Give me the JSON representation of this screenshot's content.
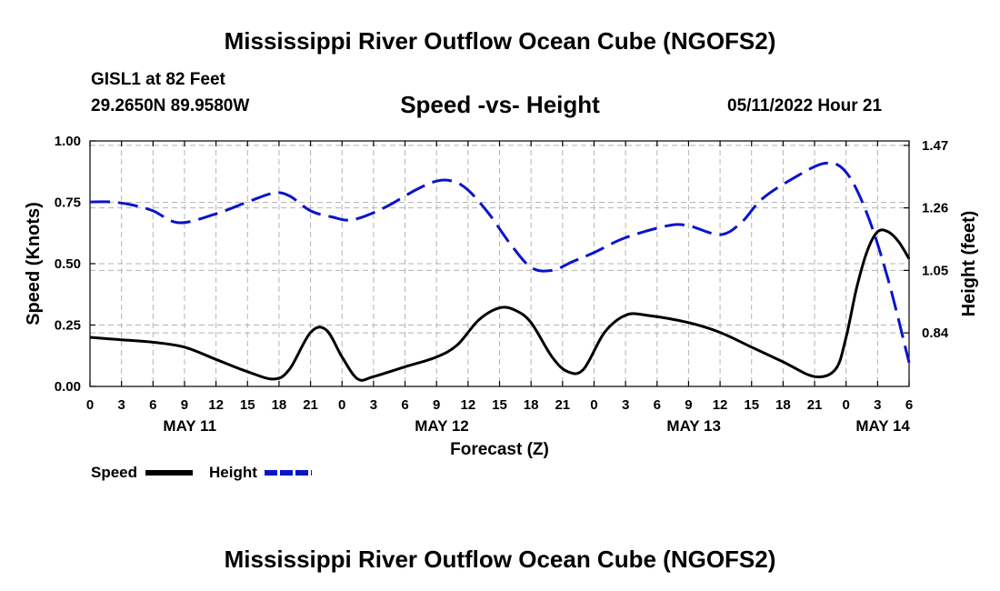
{
  "header": {
    "title": "Mississippi River Outflow Ocean Cube (NGOFS2)",
    "station": "GISL1 at 82 Feet",
    "coords": "29.2650N  89.9580W",
    "subtitle": "Speed -vs- Height",
    "datetime": "05/11/2022 Hour 21"
  },
  "footer": {
    "title_repeat": "Mississippi River Outflow Ocean Cube (NGOFS2)"
  },
  "chart_data": {
    "type": "line",
    "title": "Speed -vs- Height",
    "xlabel": "Forecast (Z)",
    "ylabel": "Speed (Knots)",
    "ylabel_right": "Height (feet)",
    "grid": true,
    "xlim": [
      0,
      78
    ],
    "ylim": [
      0,
      1
    ],
    "ylim_right": [
      0.66,
      1.485
    ],
    "x_ticks": [
      0,
      3,
      6,
      9,
      12,
      15,
      18,
      21,
      24,
      27,
      30,
      33,
      36,
      39,
      42,
      45,
      48,
      51,
      54,
      57,
      60,
      63,
      66,
      69,
      72,
      75,
      78
    ],
    "x_tick_labels": [
      "0",
      "3",
      "6",
      "9",
      "12",
      "15",
      "18",
      "21",
      "0",
      "3",
      "6",
      "9",
      "12",
      "15",
      "18",
      "21",
      "0",
      "3",
      "6",
      "9",
      "12",
      "15",
      "18",
      "21",
      "0",
      "3",
      "6"
    ],
    "date_labels": [
      {
        "x": 9.5,
        "label": "MAY 11"
      },
      {
        "x": 33.5,
        "label": "MAY 12"
      },
      {
        "x": 57.5,
        "label": "MAY 13"
      },
      {
        "x": 75.5,
        "label": "MAY 14"
      }
    ],
    "y_ticks": [
      0,
      0.25,
      0.5,
      0.75,
      1.0
    ],
    "y_tick_labels": [
      "0.00",
      "0.25",
      "0.50",
      "0.75",
      "1.00"
    ],
    "y_ticks_right": [
      0.84,
      1.05,
      1.26,
      1.47
    ],
    "y_tick_labels_right": [
      "0.84",
      "1.05",
      "1.26",
      "1.47"
    ],
    "legend": [
      {
        "name": "Speed",
        "color": "#000000",
        "dash": "solid"
      },
      {
        "name": "Height",
        "color": "#0a14c8",
        "dash": "dashed"
      }
    ],
    "legend_position": "bottom-left",
    "series": [
      {
        "name": "Speed",
        "axis": "left",
        "color": "#000000",
        "x": [
          0,
          3,
          6,
          9,
          12,
          15,
          17.5,
          19,
          21,
          22.5,
          24,
          25.5,
          27,
          30,
          33,
          35,
          37,
          39,
          40.5,
          42,
          44,
          45.5,
          47,
          49,
          51,
          53,
          57,
          60,
          63,
          66,
          69,
          71,
          72,
          73,
          74,
          75,
          76,
          77,
          78
        ],
        "values": [
          0.2,
          0.19,
          0.18,
          0.16,
          0.11,
          0.06,
          0.03,
          0.07,
          0.22,
          0.23,
          0.12,
          0.03,
          0.04,
          0.08,
          0.12,
          0.17,
          0.27,
          0.32,
          0.31,
          0.26,
          0.12,
          0.06,
          0.07,
          0.22,
          0.29,
          0.29,
          0.26,
          0.22,
          0.16,
          0.1,
          0.04,
          0.07,
          0.2,
          0.4,
          0.55,
          0.63,
          0.63,
          0.59,
          0.52
        ]
      },
      {
        "name": "Height",
        "axis": "right",
        "color": "#0a14c8",
        "x": [
          0,
          2,
          4,
          6,
          8.5,
          12,
          15,
          17.5,
          19,
          21,
          23,
          25,
          28,
          31,
          33,
          34.5,
          36,
          38,
          40,
          42,
          44,
          46,
          48,
          51,
          55,
          57,
          60,
          62,
          64,
          67,
          70,
          72,
          74,
          76,
          78
        ],
        "values": [
          1.28,
          1.28,
          1.27,
          1.25,
          1.21,
          1.24,
          1.28,
          1.31,
          1.3,
          1.25,
          1.23,
          1.22,
          1.26,
          1.32,
          1.35,
          1.35,
          1.32,
          1.24,
          1.14,
          1.06,
          1.05,
          1.08,
          1.11,
          1.16,
          1.2,
          1.2,
          1.17,
          1.21,
          1.29,
          1.36,
          1.41,
          1.38,
          1.24,
          1.02,
          0.74
        ]
      }
    ]
  }
}
